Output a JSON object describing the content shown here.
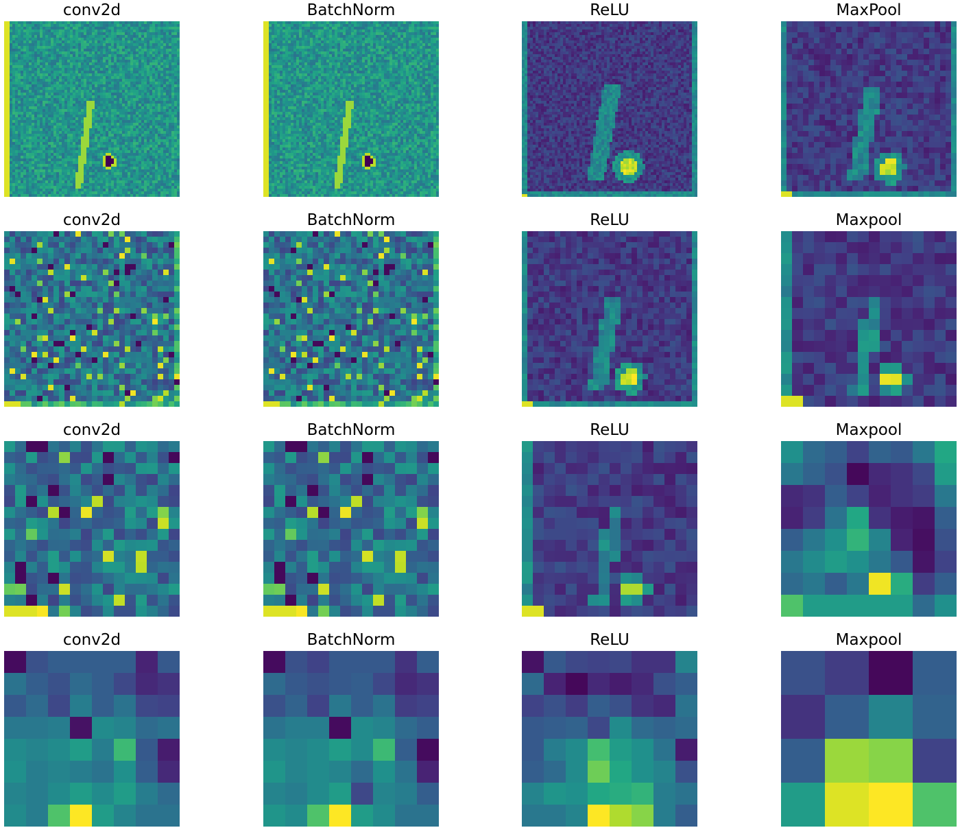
{
  "chart_data": {
    "type": "heatmap",
    "colormap": "viridis",
    "axes": "off",
    "grid": false,
    "rows": 4,
    "cols": 4,
    "layers": [
      [
        "conv2d",
        "BatchNorm",
        "ReLU",
        "MaxPool"
      ],
      [
        "conv2d",
        "BatchNorm",
        "ReLU",
        "Maxpool"
      ],
      [
        "conv2d",
        "BatchNorm",
        "ReLU",
        "Maxpool"
      ],
      [
        "conv2d",
        "BatchNorm",
        "ReLU",
        "Maxpool"
      ]
    ],
    "feature_map_sizes": [
      64,
      32,
      16,
      8,
      4
    ],
    "panels": [
      {
        "title": "conv2d",
        "resolution": 64,
        "data": "textured_high"
      },
      {
        "title": "BatchNorm",
        "resolution": 64,
        "data": "textured_high"
      },
      {
        "title": "ReLU",
        "resolution": 64,
        "data": "dark_with_hotspot"
      },
      {
        "title": "MaxPool",
        "resolution": 32,
        "data": "dark_with_hotspot"
      },
      {
        "title": "conv2d",
        "resolution": 32,
        "data": "textured_mid"
      },
      {
        "title": "BatchNorm",
        "resolution": 32,
        "data": "textured_mid"
      },
      {
        "title": "ReLU",
        "resolution": 32,
        "data": "dark_with_hotspot"
      },
      {
        "title": "Maxpool",
        "resolution": 16,
        "data": "dark_with_hotspot"
      },
      {
        "title": "conv2d",
        "resolution": 16,
        "data": "textured_mid"
      },
      {
        "title": "BatchNorm",
        "resolution": 16,
        "data": "textured_mid"
      },
      {
        "title": "ReLU",
        "resolution": 16,
        "data": "dark_with_hotspot"
      },
      {
        "title": "Maxpool",
        "resolution": 8,
        "data": "explicit"
      },
      {
        "title": "conv2d",
        "resolution": 8,
        "data": "explicit"
      },
      {
        "title": "BatchNorm",
        "resolution": 8,
        "data": "explicit"
      },
      {
        "title": "ReLU",
        "resolution": 8,
        "data": "explicit"
      },
      {
        "title": "Maxpool",
        "resolution": 4,
        "data": "explicit"
      }
    ],
    "explicit_values": {
      "r3_maxpool": [
        [
          0.5,
          0.35,
          0.3,
          0.2,
          0.32,
          0.28,
          0.4,
          0.6
        ],
        [
          0.4,
          0.32,
          0.25,
          0.02,
          0.12,
          0.15,
          0.22,
          0.55
        ],
        [
          0.12,
          0.15,
          0.3,
          0.2,
          0.1,
          0.15,
          0.18,
          0.4
        ],
        [
          0.1,
          0.18,
          0.38,
          0.6,
          0.15,
          0.08,
          0.06,
          0.3
        ],
        [
          0.3,
          0.4,
          0.5,
          0.65,
          0.45,
          0.1,
          0.04,
          0.25
        ],
        [
          0.4,
          0.48,
          0.55,
          0.5,
          0.4,
          0.28,
          0.06,
          0.2
        ],
        [
          0.35,
          0.4,
          0.3,
          0.4,
          0.98,
          0.62,
          0.18,
          0.3
        ],
        [
          0.72,
          0.55,
          0.55,
          0.55,
          0.55,
          0.55,
          0.35,
          0.5
        ]
      ],
      "r4_conv2d": [
        [
          0.03,
          0.25,
          0.3,
          0.3,
          0.3,
          0.3,
          0.1,
          0.28
        ],
        [
          0.38,
          0.3,
          0.25,
          0.35,
          0.3,
          0.22,
          0.12,
          0.15
        ],
        [
          0.28,
          0.35,
          0.22,
          0.42,
          0.3,
          0.38,
          0.22,
          0.2
        ],
        [
          0.4,
          0.4,
          0.42,
          0.05,
          0.48,
          0.45,
          0.35,
          0.38
        ],
        [
          0.48,
          0.45,
          0.48,
          0.55,
          0.42,
          0.68,
          0.28,
          0.08
        ],
        [
          0.5,
          0.42,
          0.45,
          0.42,
          0.38,
          0.5,
          0.3,
          0.12
        ],
        [
          0.45,
          0.42,
          0.48,
          0.55,
          0.48,
          0.55,
          0.42,
          0.35
        ],
        [
          0.48,
          0.42,
          0.72,
          1.0,
          0.55,
          0.45,
          0.38,
          0.38
        ]
      ],
      "r4_batchnorm": [
        [
          0.03,
          0.25,
          0.2,
          0.28,
          0.28,
          0.28,
          0.15,
          0.3
        ],
        [
          0.35,
          0.28,
          0.25,
          0.28,
          0.3,
          0.22,
          0.12,
          0.15
        ],
        [
          0.25,
          0.32,
          0.2,
          0.4,
          0.3,
          0.38,
          0.18,
          0.2
        ],
        [
          0.38,
          0.42,
          0.42,
          0.03,
          0.48,
          0.45,
          0.35,
          0.3
        ],
        [
          0.48,
          0.45,
          0.48,
          0.55,
          0.48,
          0.68,
          0.3,
          0.03
        ],
        [
          0.52,
          0.45,
          0.48,
          0.45,
          0.35,
          0.5,
          0.38,
          0.1
        ],
        [
          0.45,
          0.42,
          0.48,
          0.55,
          0.22,
          0.45,
          0.42,
          0.3
        ],
        [
          0.52,
          0.48,
          0.72,
          1.0,
          0.55,
          0.48,
          0.38,
          0.38
        ]
      ],
      "r4_relu": [
        [
          0.05,
          0.28,
          0.22,
          0.2,
          0.22,
          0.15,
          0.15,
          0.45
        ],
        [
          0.35,
          0.1,
          0.02,
          0.12,
          0.08,
          0.12,
          0.25,
          0.3
        ],
        [
          0.2,
          0.25,
          0.18,
          0.3,
          0.25,
          0.15,
          0.12,
          0.38
        ],
        [
          0.28,
          0.3,
          0.32,
          0.22,
          0.48,
          0.35,
          0.32,
          0.35
        ],
        [
          0.28,
          0.42,
          0.48,
          0.7,
          0.55,
          0.5,
          0.38,
          0.08
        ],
        [
          0.3,
          0.35,
          0.48,
          0.78,
          0.6,
          0.5,
          0.45,
          0.25
        ],
        [
          0.45,
          0.52,
          0.5,
          0.6,
          0.62,
          0.65,
          0.42,
          0.38
        ],
        [
          0.4,
          0.4,
          0.45,
          1.0,
          0.88,
          0.82,
          0.42,
          0.3
        ]
      ],
      "r4_maxpool": [
        [
          0.25,
          0.18,
          0.02,
          0.3
        ],
        [
          0.15,
          0.3,
          0.45,
          0.32
        ],
        [
          0.3,
          0.85,
          0.82,
          0.2
        ],
        [
          0.55,
          0.95,
          1.0,
          0.72
        ]
      ]
    }
  }
}
